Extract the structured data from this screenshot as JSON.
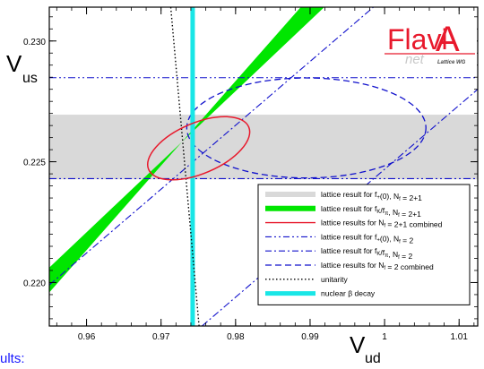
{
  "chart_data": {
    "type": "scatter",
    "xlabel": "V",
    "xlabel_sub": "ud",
    "ylabel": "V",
    "ylabel_sub": "us",
    "xlim": [
      0.955,
      1.0125
    ],
    "ylim": [
      0.2182,
      0.2314
    ],
    "x_ticks": [
      {
        "v": 0.96,
        "label": "0.96"
      },
      {
        "v": 0.97,
        "label": "0.97"
      },
      {
        "v": 0.98,
        "label": "0.98"
      },
      {
        "v": 0.99,
        "label": "0.99"
      },
      {
        "v": 1.0,
        "label": "1"
      },
      {
        "v": 1.01,
        "label": "1.01"
      }
    ],
    "y_ticks": [
      {
        "v": 0.22,
        "label": "0.220"
      },
      {
        "v": 0.225,
        "label": "0.225"
      },
      {
        "v": 0.23,
        "label": "0.230"
      }
    ],
    "logo": {
      "text_main": "Flavi",
      "text_a": "A",
      "text_sub": "net",
      "text_wg": "Lattice WG",
      "color": "#e8192c"
    },
    "series": {
      "f0_21": {
        "name": "lattice result for f+(0), Nf = 2+1",
        "y_range": [
          0.22427,
          0.22695
        ],
        "color": "#d9d9d9"
      },
      "fk_21": {
        "name": "lattice result for fK/fπ, Nf = 2+1",
        "points": [
          [
            0.955,
            0.21959
          ],
          [
            0.955,
            0.22062
          ],
          [
            0.997,
            0.23289
          ],
          [
            0.993,
            0.23289
          ]
        ],
        "color": "#00e600"
      },
      "comb_21": {
        "name": "lattice results for Nf = 2+1 combined",
        "ellipse": {
          "cx": 0.97505,
          "cy": 0.22556,
          "rx": 0.0073,
          "ry": 0.00105,
          "angle_deg": 23
        },
        "color": "#e8192c"
      },
      "f0_2": {
        "name": "lattice result for f+(0), Nf = 2",
        "y": [
          0.2243,
          0.22848
        ],
        "color": "#1111cc"
      },
      "fk_2": {
        "name": "lattice result for fK/fπ, Nf = 2",
        "lines": [
          [
            [
              0.955,
              0.2199
            ],
            [
              0.9985,
              0.2314
            ]
          ],
          [
            [
              0.9755,
              0.2182
            ],
            [
              1.0125,
              0.228
            ]
          ]
        ],
        "color": "#1111cc"
      },
      "comb_2": {
        "name": "lattice results for Nf = 2 combined",
        "ellipse": {
          "cx": 0.9895,
          "cy": 0.2264,
          "rx": 0.01605,
          "ry": 0.00207,
          "angle_deg": 0
        },
        "color": "#1111cc"
      },
      "unitarity": {
        "name": "unitarity",
        "points": [
          [
            0.9713,
            0.2314
          ],
          [
            0.9751,
            0.2182
          ]
        ],
        "color": "#000000"
      },
      "beta": {
        "name": "nuclear β decay",
        "x": 0.97424,
        "color": "#19e6e6"
      }
    },
    "legend_position": "bottom-right",
    "legend": [
      {
        "key": "f0_21",
        "style": "gray",
        "prefix": "lattice result for f",
        "sub1": "+",
        "mid": "(0), N",
        "sub2": "f",
        "suffix": " = 2+1"
      },
      {
        "key": "fk_21",
        "style": "green",
        "prefix": "lattice result for f",
        "sub1": "K",
        "mid": "/f",
        "sub_pi": "π",
        "mid2": ", N",
        "sub2": "f",
        "suffix": " = 2+1"
      },
      {
        "key": "comb_21",
        "style": "red",
        "prefix": "lattice results for N",
        "sub2": "f",
        "suffix": " = 2+1 combined"
      },
      {
        "key": "f0_2",
        "style": "dashdotdot",
        "prefix": "lattice result for f",
        "sub1": "+",
        "mid": "(0), N",
        "sub2": "f",
        "suffix": " = 2"
      },
      {
        "key": "fk_2",
        "style": "dashdot",
        "prefix": "lattice result for f",
        "sub1": "K",
        "mid": "/f",
        "sub_pi": "π",
        "mid2": ", N",
        "sub2": "f",
        "suffix": " = 2"
      },
      {
        "key": "comb_2",
        "style": "dashed",
        "prefix": "lattice results for N",
        "sub2": "f",
        "suffix": " = 2 combined"
      },
      {
        "key": "unitarity",
        "style": "dotted",
        "prefix": "unitarity"
      },
      {
        "key": "beta",
        "style": "cyan",
        "prefix": "nuclear β decay"
      }
    ]
  },
  "cut_text": "ults:"
}
